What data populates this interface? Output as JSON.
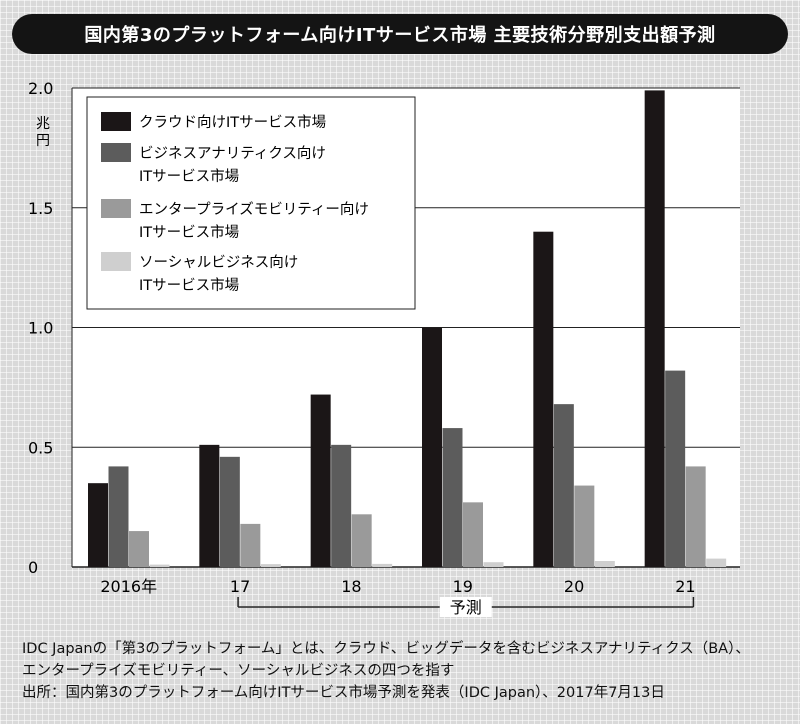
{
  "title": "国内第3のプラットフォーム向けITサービス市場 主要技術分野別支出額予測",
  "notes": [
    "IDC Japanの「第3のプラットフォーム」とは、クラウド、ビッグデータを含むビジネスアナリティクス（BA）、",
    "エンタープライズモビリティー、ソーシャルビジネスの四つを指す",
    "出所：国内第3のプラットフォーム向けITサービス市場予測を発表（IDC Japan）、2017年7月13日"
  ],
  "colors": {
    "s1": "#1b1617",
    "s2": "#5c5c5c",
    "s3": "#9a9a9a",
    "s4": "#cfcfcf"
  },
  "chart_data": {
    "type": "bar",
    "title": "国内第3のプラットフォーム向けITサービス市場 主要技術分野別支出額予測",
    "ylabel": "兆円",
    "ylim": [
      0,
      2.0
    ],
    "yticks": [
      0,
      0.5,
      1.0,
      1.5,
      2.0
    ],
    "ytick_labels": [
      "0",
      "0.5",
      "1.0",
      "1.5",
      "2.0"
    ],
    "grid": true,
    "legend_position": "top-left",
    "categories": [
      "2016年",
      "17",
      "18",
      "19",
      "20",
      "21"
    ],
    "forecast_label": "予測",
    "forecast_range": [
      "17",
      "21"
    ],
    "series": [
      {
        "name": "クラウド向けITサービス市場",
        "name_lines": [
          "クラウド向けITサービス市場"
        ],
        "values": [
          0.35,
          0.51,
          0.72,
          1.0,
          1.4,
          1.99
        ]
      },
      {
        "name": "ビジネスアナリティクス向けITサービス市場",
        "name_lines": [
          "ビジネスアナリティクス向け",
          "ITサービス市場"
        ],
        "values": [
          0.42,
          0.46,
          0.51,
          0.58,
          0.68,
          0.82
        ]
      },
      {
        "name": "エンタープライズモビリティー向けITサービス市場",
        "name_lines": [
          "エンタープライズモビリティー向け",
          "ITサービス市場"
        ],
        "values": [
          0.15,
          0.18,
          0.22,
          0.27,
          0.34,
          0.42
        ]
      },
      {
        "name": "ソーシャルビジネス向けITサービス市場",
        "name_lines": [
          "ソーシャルビジネス向け",
          "ITサービス市場"
        ],
        "values": [
          0.01,
          0.012,
          0.013,
          0.02,
          0.025,
          0.035
        ]
      }
    ]
  }
}
